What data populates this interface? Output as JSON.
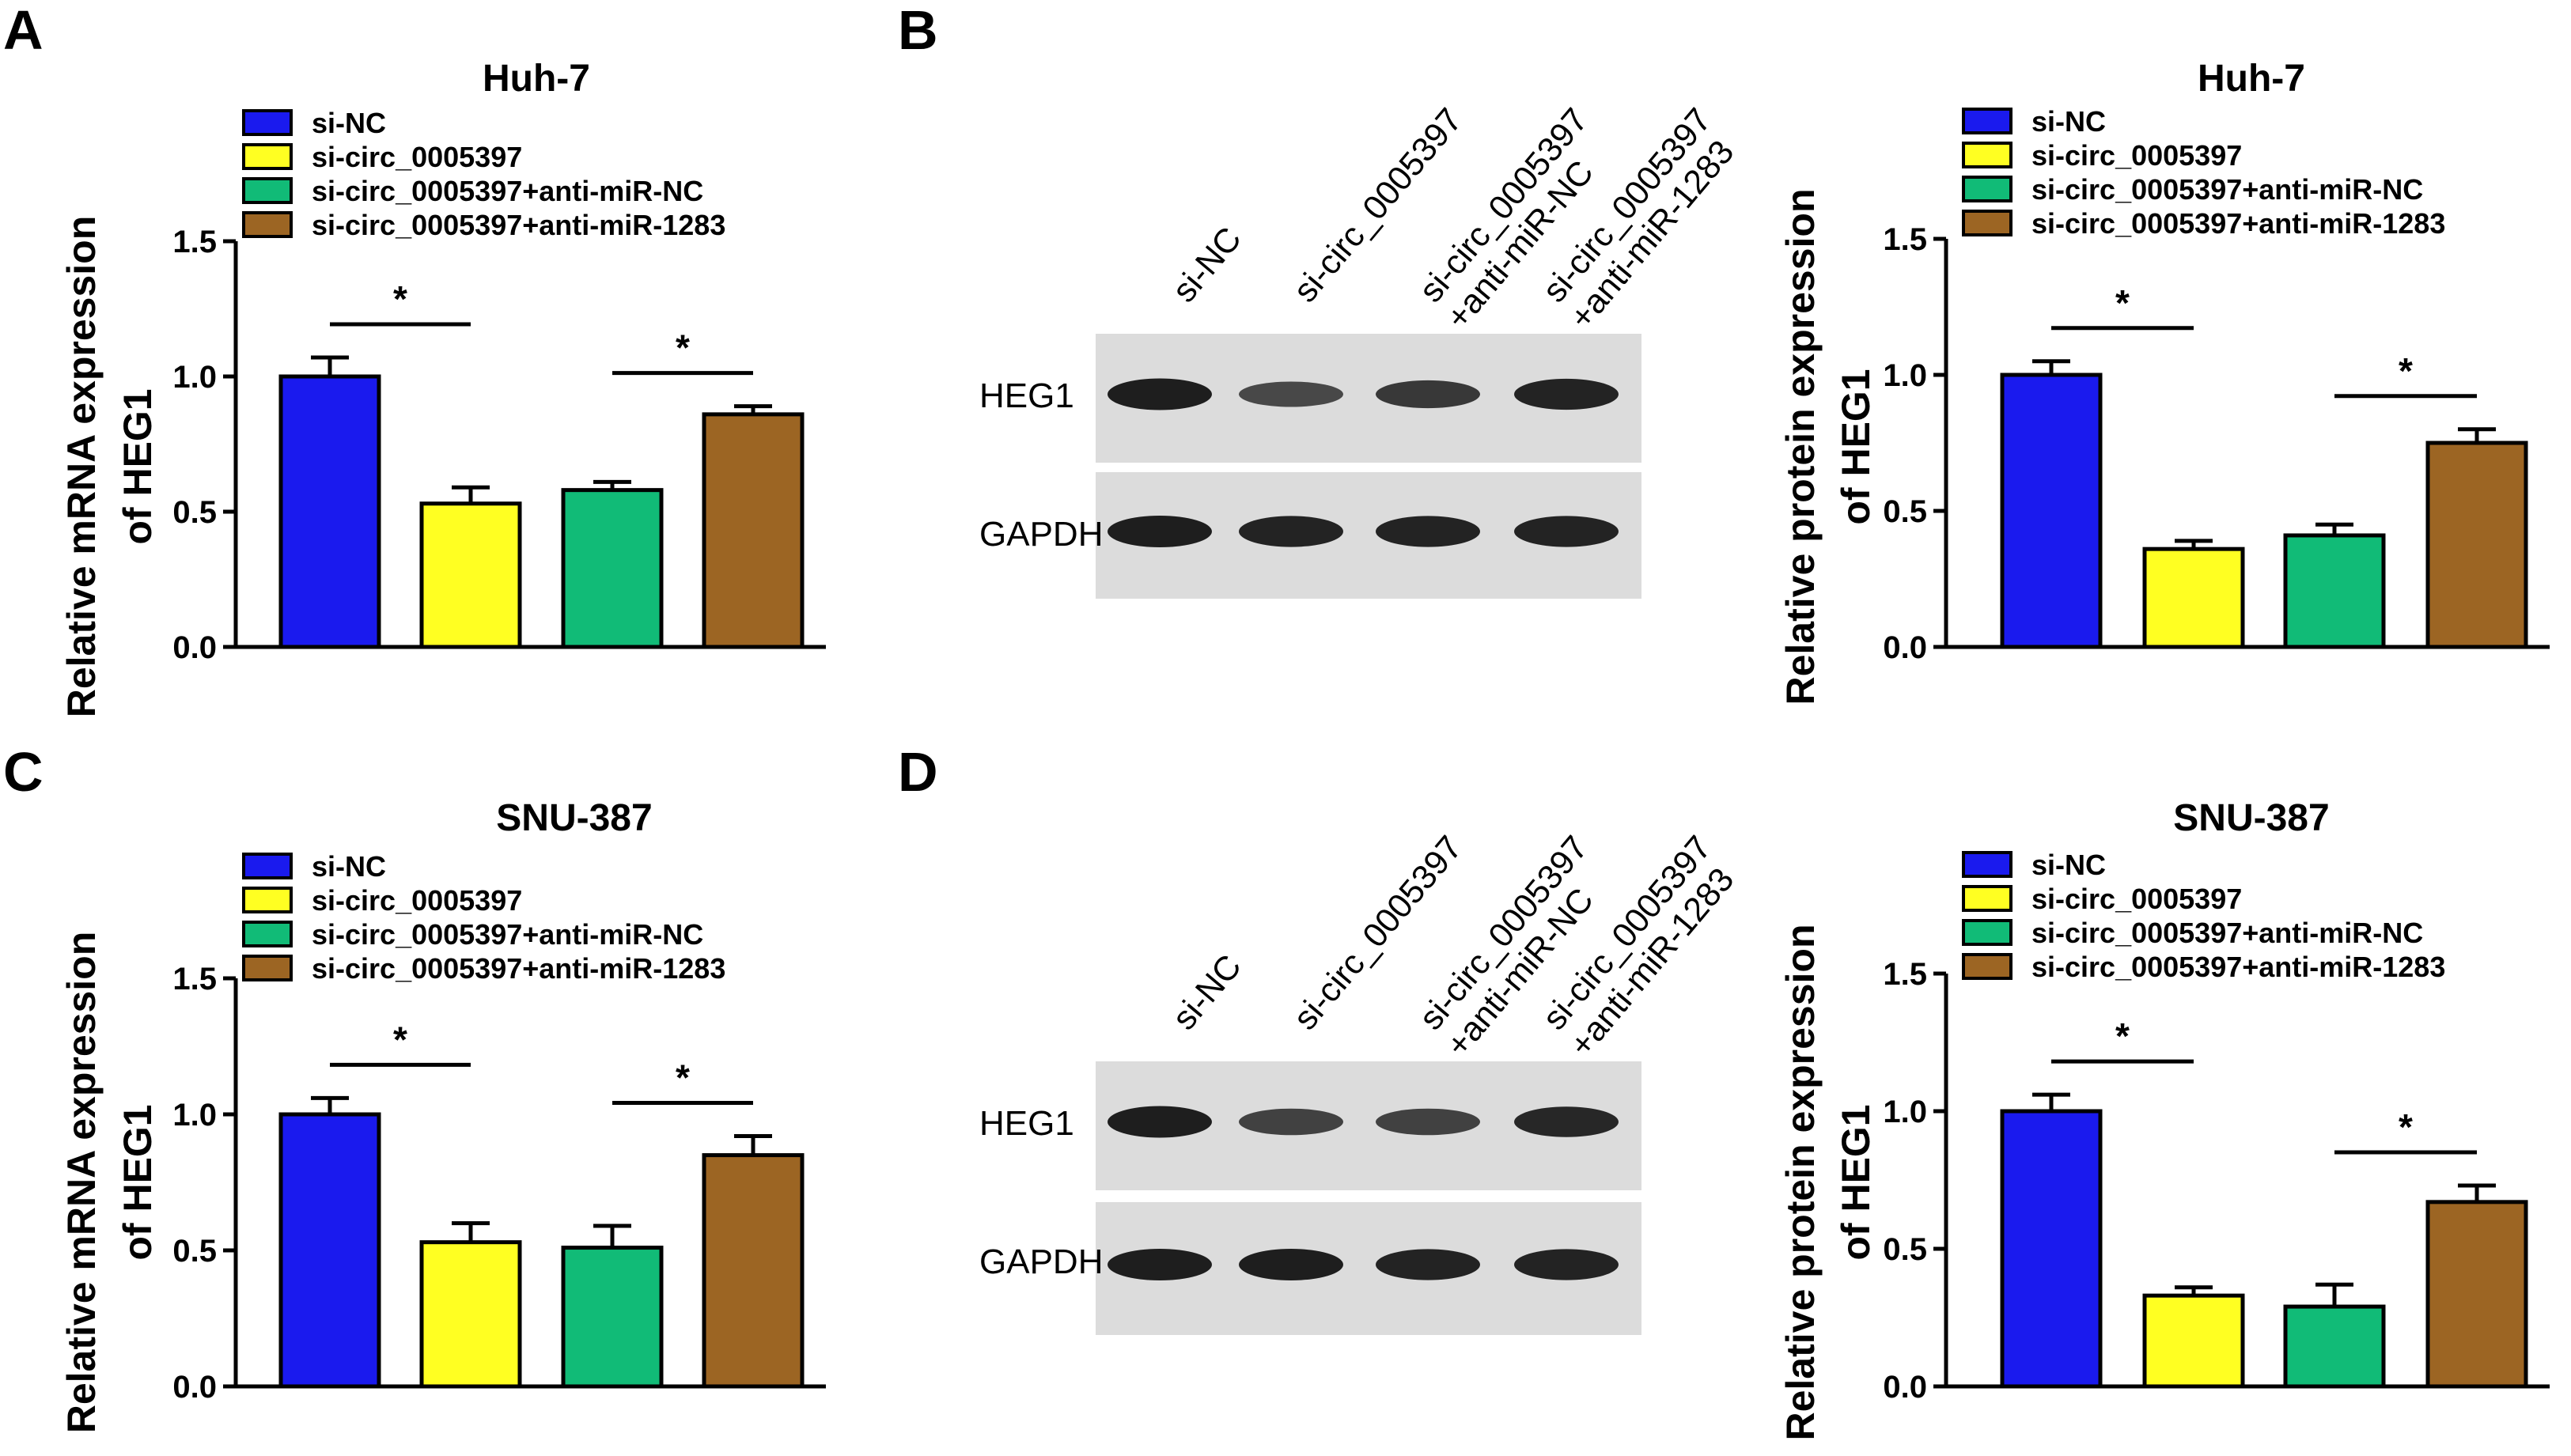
{
  "colors": {
    "si-NC": "#1a1aee",
    "si-circ_0005397": "#ffff22",
    "si-circ_0005397+anti-miR-NC": "#11bb77",
    "si-circ_0005397+anti-miR-1283": "#9c6523",
    "blot_background": "#dcdcdc",
    "band": "#1e1e1e"
  },
  "panels": {
    "A": {
      "letter": "A"
    },
    "B": {
      "letter": "B"
    },
    "C": {
      "letter": "C"
    },
    "D": {
      "letter": "D"
    }
  },
  "blots": [
    {
      "panel": "B",
      "lanes": [
        "si-NC",
        "si-circ_0005397",
        "si-circ_0005397\n+anti-miR-NC",
        "si-circ_0005397\n+anti-miR-1283"
      ],
      "rows": [
        {
          "label": "HEG1",
          "band_intensity": [
            1.0,
            0.5,
            0.7,
            0.95
          ]
        },
        {
          "label": "GAPDH",
          "band_intensity": [
            1.0,
            0.95,
            0.95,
            0.95
          ]
        }
      ]
    },
    {
      "panel": "D",
      "lanes": [
        "si-NC",
        "si-circ_0005397",
        "si-circ_0005397\n+anti-miR-NC",
        "si-circ_0005397\n+anti-miR-1283"
      ],
      "rows": [
        {
          "label": "HEG1",
          "band_intensity": [
            1.0,
            0.6,
            0.6,
            0.9
          ]
        },
        {
          "label": "GAPDH",
          "band_intensity": [
            1.0,
            1.0,
            0.95,
            0.95
          ]
        }
      ]
    }
  ],
  "chart_data": [
    {
      "panel": "A",
      "type": "bar",
      "title": "Huh-7",
      "ylabel": "Relative mRNA expression\nof HEG1",
      "categories": [
        "si-NC",
        "si-circ_0005397",
        "si-circ_0005397+anti-miR-NC",
        "si-circ_0005397+anti-miR-1283"
      ],
      "values": [
        1.0,
        0.53,
        0.58,
        0.86
      ],
      "errors": [
        0.07,
        0.06,
        0.03,
        0.03
      ],
      "ylim": [
        0,
        1.5
      ],
      "yticks": [
        "0.0",
        "0.5",
        "1.0",
        "1.5"
      ],
      "legend": "top-left",
      "significance": [
        {
          "groups": [
            0,
            1
          ],
          "label": "*"
        },
        {
          "groups": [
            2,
            3
          ],
          "label": "*"
        }
      ]
    },
    {
      "panel": "B",
      "type": "bar",
      "title": "Huh-7",
      "ylabel": "Relative protein expression\nof HEG1",
      "categories": [
        "si-NC",
        "si-circ_0005397",
        "si-circ_0005397+anti-miR-NC",
        "si-circ_0005397+anti-miR-1283"
      ],
      "values": [
        1.0,
        0.36,
        0.41,
        0.75
      ],
      "errors": [
        0.05,
        0.03,
        0.04,
        0.05
      ],
      "ylim": [
        0,
        1.5
      ],
      "yticks": [
        "0.0",
        "0.5",
        "1.0",
        "1.5"
      ],
      "legend": "top-left",
      "significance": [
        {
          "groups": [
            0,
            1
          ],
          "label": "*"
        },
        {
          "groups": [
            2,
            3
          ],
          "label": "*"
        }
      ]
    },
    {
      "panel": "C",
      "type": "bar",
      "title": "SNU-387",
      "ylabel": "Relative mRNA expression\nof HEG1",
      "categories": [
        "si-NC",
        "si-circ_0005397",
        "si-circ_0005397+anti-miR-NC",
        "si-circ_0005397+anti-miR-1283"
      ],
      "values": [
        1.0,
        0.53,
        0.51,
        0.85
      ],
      "errors": [
        0.06,
        0.07,
        0.08,
        0.07
      ],
      "ylim": [
        0,
        1.5
      ],
      "yticks": [
        "0.0",
        "0.5",
        "1.0",
        "1.5"
      ],
      "legend": "top-left",
      "significance": [
        {
          "groups": [
            0,
            1
          ],
          "label": "*"
        },
        {
          "groups": [
            2,
            3
          ],
          "label": "*"
        }
      ]
    },
    {
      "panel": "D",
      "type": "bar",
      "title": "SNU-387",
      "ylabel": "Relative protein expression\nof HEG1",
      "categories": [
        "si-NC",
        "si-circ_0005397",
        "si-circ_0005397+anti-miR-NC",
        "si-circ_0005397+anti-miR-1283"
      ],
      "values": [
        1.0,
        0.33,
        0.29,
        0.67
      ],
      "errors": [
        0.06,
        0.03,
        0.08,
        0.06
      ],
      "ylim": [
        0,
        1.5
      ],
      "yticks": [
        "0.0",
        "0.5",
        "1.0",
        "1.5"
      ],
      "legend": "top-left",
      "significance": [
        {
          "groups": [
            0,
            1
          ],
          "label": "*"
        },
        {
          "groups": [
            2,
            3
          ],
          "label": "*"
        }
      ]
    }
  ]
}
